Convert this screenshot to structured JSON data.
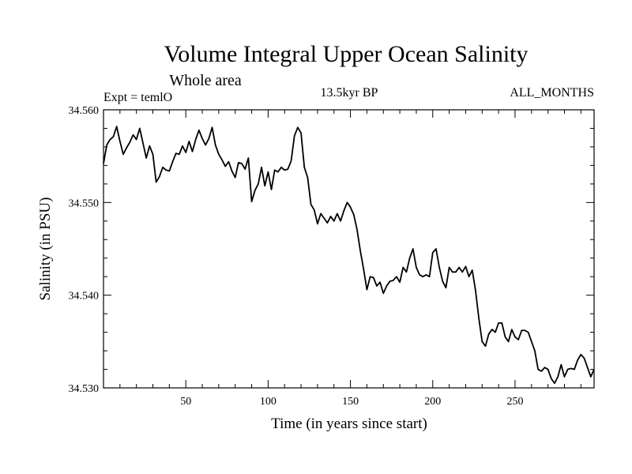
{
  "chart_data": {
    "type": "line",
    "title": "Volume Integral Upper Ocean Salinity",
    "subtitle": "Whole area",
    "left_label": "Expt = temlO",
    "center_label": "13.5kyr BP",
    "right_label": "ALL_MONTHS",
    "xlabel": "Time (in years since start)",
    "ylabel": "Salinity (in PSU)",
    "xlim": [
      0,
      298
    ],
    "ylim": [
      34.53,
      34.56
    ],
    "x_ticks": [
      50,
      100,
      150,
      200,
      250
    ],
    "x_tick_labels": [
      "50",
      "100",
      "150",
      "200",
      "250"
    ],
    "y_ticks": [
      34.53,
      34.54,
      34.55,
      34.56
    ],
    "y_tick_labels": [
      "34.530",
      "34.540",
      "34.550",
      "34.560"
    ],
    "grid": false,
    "series": [
      {
        "name": "Salinity",
        "color": "#000000",
        "x": [
          0,
          2,
          4,
          6,
          8,
          10,
          12,
          14,
          16,
          18,
          20,
          22,
          24,
          26,
          28,
          30,
          32,
          34,
          36,
          38,
          40,
          42,
          44,
          46,
          48,
          50,
          52,
          54,
          56,
          58,
          60,
          62,
          64,
          66,
          68,
          70,
          72,
          74,
          76,
          78,
          80,
          82,
          84,
          86,
          88,
          90,
          92,
          94,
          96,
          98,
          100,
          102,
          104,
          106,
          108,
          110,
          112,
          114,
          116,
          118,
          120,
          122,
          124,
          126,
          128,
          130,
          132,
          134,
          136,
          138,
          140,
          142,
          144,
          146,
          148,
          150,
          152,
          154,
          156,
          158,
          160,
          162,
          164,
          166,
          168,
          170,
          172,
          174,
          176,
          178,
          180,
          182,
          184,
          186,
          188,
          190,
          192,
          194,
          196,
          198,
          200,
          202,
          204,
          206,
          208,
          210,
          212,
          214,
          216,
          218,
          220,
          222,
          224,
          226,
          228,
          230,
          232,
          234,
          236,
          238,
          240,
          242,
          244,
          246,
          248,
          250,
          252,
          254,
          256,
          258,
          260,
          262,
          264,
          266,
          268,
          270,
          272,
          274,
          276,
          278,
          280,
          282,
          284,
          286,
          288,
          290,
          292,
          294,
          296,
          298
        ],
        "values": [
          34.5542,
          34.5562,
          34.5568,
          34.5571,
          34.5582,
          34.5566,
          34.5552,
          34.5559,
          34.5565,
          34.5573,
          34.5568,
          34.558,
          34.5564,
          34.5548,
          34.5561,
          34.5552,
          34.5522,
          34.5528,
          34.5538,
          34.5535,
          34.5534,
          34.5544,
          34.5553,
          34.5552,
          34.5561,
          34.5554,
          34.5566,
          34.5555,
          34.5568,
          34.5578,
          34.5569,
          34.5562,
          34.5569,
          34.5581,
          34.5562,
          34.5552,
          34.5546,
          34.5539,
          34.5544,
          34.5534,
          34.5527,
          34.5543,
          34.5542,
          34.5536,
          34.5548,
          34.5501,
          34.5513,
          34.552,
          34.5538,
          34.5518,
          34.5533,
          34.5514,
          34.5535,
          34.5533,
          34.5538,
          34.5535,
          34.5536,
          34.5545,
          34.5572,
          34.5581,
          34.5575,
          34.5538,
          34.5527,
          34.5498,
          34.5492,
          34.5477,
          34.5488,
          34.5483,
          34.5478,
          34.5485,
          34.548,
          34.5488,
          34.548,
          34.5491,
          34.55,
          34.5495,
          34.5487,
          34.5471,
          34.5448,
          34.5428,
          34.5406,
          34.542,
          34.5419,
          34.541,
          34.5414,
          34.5402,
          34.541,
          34.5415,
          34.5416,
          34.542,
          34.5414,
          34.543,
          34.5425,
          34.544,
          34.545,
          34.543,
          34.5422,
          34.542,
          34.5422,
          34.542,
          34.5446,
          34.545,
          34.543,
          34.5415,
          34.5408,
          34.543,
          34.5425,
          34.5425,
          34.543,
          34.5425,
          34.5431,
          34.542,
          34.5427,
          34.5405,
          34.5375,
          34.535,
          34.5345,
          34.5358,
          34.5363,
          34.536,
          34.537,
          34.537,
          34.5355,
          34.535,
          34.5363,
          34.5355,
          34.5352,
          34.5362,
          34.5362,
          34.536,
          34.535,
          34.534,
          34.532,
          34.5318,
          34.5322,
          34.532,
          34.531,
          34.5305,
          34.5312,
          34.5325,
          34.5312,
          34.532,
          34.5321,
          34.532,
          34.533,
          34.5336,
          34.5332,
          34.5322,
          34.5312,
          34.532
        ]
      }
    ]
  }
}
